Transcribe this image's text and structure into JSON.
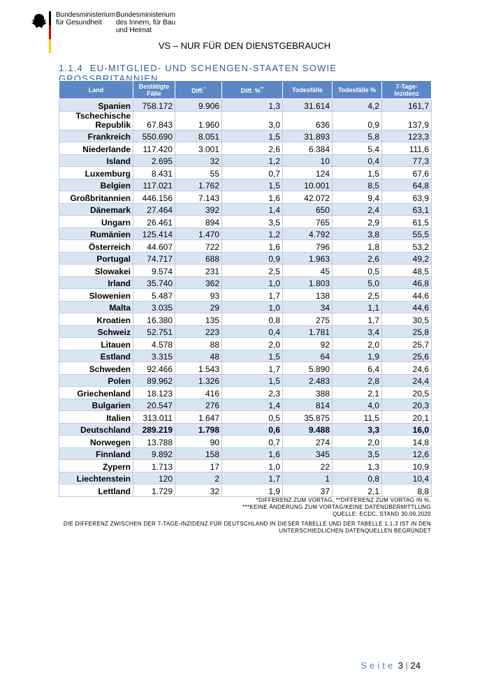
{
  "header": {
    "logo_left": [
      "Bundesministerium",
      "für Gesundheit"
    ],
    "logo_right": [
      "Bundesministerium",
      "des Innern, für Bau",
      "und Heimat"
    ],
    "classification": "VS – NUR FÜR DEN DIENSTGEBRAUCH"
  },
  "section": {
    "number": "1.1.4",
    "title": "EU-MITGLIED- UND SCHENGEN-STAATEN SOWIE GROSSBRITANNIEN"
  },
  "table": {
    "columns": [
      {
        "text": "Land"
      },
      {
        "text": "Bestätigte Fälle"
      },
      {
        "text": "Diff.",
        "sup": "*"
      },
      {
        "text": "Diff. %",
        "sup": "**"
      },
      {
        "text": "Todesfälle"
      },
      {
        "text": "Todesfälle %"
      },
      {
        "text": "7-Tage-Inzidenz"
      }
    ],
    "rows": [
      {
        "cells": [
          "Spanien",
          "758.172",
          "9.906",
          "1,3",
          "31.614",
          "4,2",
          "161,7"
        ]
      },
      {
        "cells": [
          "Tschechische Republik",
          "67.843",
          "1.960",
          "3,0",
          "636",
          "0,9",
          "137,9"
        ]
      },
      {
        "cells": [
          "Frankreich",
          "550.690",
          "8.051",
          "1,5",
          "31.893",
          "5,8",
          "123,3"
        ]
      },
      {
        "cells": [
          "Niederlande",
          "117.420",
          "3.001",
          "2,6",
          "6.384",
          "5,4",
          "111,6"
        ]
      },
      {
        "cells": [
          "Island",
          "2.695",
          "32",
          "1,2",
          "10",
          "0,4",
          "77,3"
        ]
      },
      {
        "cells": [
          "Luxemburg",
          "8.431",
          "55",
          "0,7",
          "124",
          "1,5",
          "67,6"
        ]
      },
      {
        "cells": [
          "Belgien",
          "117.021",
          "1.762",
          "1,5",
          "10.001",
          "8,5",
          "64,8"
        ]
      },
      {
        "cells": [
          "Großbritannien",
          "446.156",
          "7.143",
          "1,6",
          "42.072",
          "9,4",
          "63,9"
        ]
      },
      {
        "cells": [
          "Dänemark",
          "27.464",
          "392",
          "1,4",
          "650",
          "2,4",
          "63,1"
        ]
      },
      {
        "cells": [
          "Ungarn",
          "26.461",
          "894",
          "3,5",
          "765",
          "2,9",
          "61,5"
        ]
      },
      {
        "cells": [
          "Rumänien",
          "125.414",
          "1.470",
          "1,2",
          "4.792",
          "3,8",
          "55,5"
        ]
      },
      {
        "cells": [
          "Österreich",
          "44.607",
          "722",
          "1,6",
          "796",
          "1,8",
          "53,2"
        ]
      },
      {
        "cells": [
          "Portugal",
          "74.717",
          "688",
          "0,9",
          "1.963",
          "2,6",
          "49,2"
        ]
      },
      {
        "cells": [
          "Slowakei",
          "9.574",
          "231",
          "2,5",
          "45",
          "0,5",
          "48,5"
        ]
      },
      {
        "cells": [
          "Irland",
          "35.740",
          "362",
          "1,0",
          "1.803",
          "5,0",
          "46,8"
        ]
      },
      {
        "cells": [
          "Slowenien",
          "5.487",
          "93",
          "1,7",
          "138",
          "2,5",
          "44,6"
        ]
      },
      {
        "cells": [
          "Malta",
          "3.035",
          "29",
          "1,0",
          "34",
          "1,1",
          "44,6"
        ]
      },
      {
        "cells": [
          "Kroatien",
          "16.380",
          "135",
          "0,8",
          "275",
          "1,7",
          "30,5"
        ]
      },
      {
        "cells": [
          "Schweiz",
          "52.751",
          "223",
          "0,4",
          "1.781",
          "3,4",
          "25,8"
        ]
      },
      {
        "cells": [
          "Litauen",
          "4.578",
          "88",
          "2,0",
          "92",
          "2,0",
          "25,7"
        ]
      },
      {
        "cells": [
          "Estland",
          "3.315",
          "48",
          "1,5",
          "64",
          "1,9",
          "25,6"
        ]
      },
      {
        "cells": [
          "Schweden",
          "92.466",
          "1.543",
          "1,7",
          "5.890",
          "6,4",
          "24,6"
        ]
      },
      {
        "cells": [
          "Polen",
          "89.962",
          "1.326",
          "1,5",
          "2.483",
          "2,8",
          "24,4"
        ]
      },
      {
        "cells": [
          "Griechenland",
          "18.123",
          "416",
          "2,3",
          "388",
          "2,1",
          "20,5"
        ]
      },
      {
        "cells": [
          "Bulgarien",
          "20.547",
          "276",
          "1,4",
          "814",
          "4,0",
          "20,3"
        ]
      },
      {
        "cells": [
          "Italien",
          "313.011",
          "1.647",
          "0,5",
          "35.875",
          "11,5",
          "20,1"
        ]
      },
      {
        "cells": [
          "Deutschland",
          "289.219",
          "1.798",
          "0,6",
          "9.488",
          "3,3",
          "16,0"
        ],
        "bold": true
      },
      {
        "cells": [
          "Norwegen",
          "13.788",
          "90",
          "0,7",
          "274",
          "2,0",
          "14,8"
        ]
      },
      {
        "cells": [
          "Finnland",
          "9.892",
          "158",
          "1,6",
          "345",
          "3,5",
          "12,6"
        ]
      },
      {
        "cells": [
          "Zypern",
          "1.713",
          "17",
          "1,0",
          "22",
          "1,3",
          "10,9"
        ]
      },
      {
        "cells": [
          "Liechtenstein",
          "120",
          "2",
          "1,7",
          "1",
          "0,8",
          "10,4"
        ]
      },
      {
        "cells": [
          "Lettland",
          "1.729",
          "32",
          "1,9",
          "37",
          "2,1",
          "8,8"
        ]
      }
    ]
  },
  "footnotes": [
    "*DIFFERENZ ZUM VORTAG, **DIFFERENZ ZUM VORTAG IN %,",
    "***KEINE ÄNDERUNG ZUM VORTAG/KEINE DATENÜBERMITTLUNG",
    "QUELLE: ECDC, STAND 30.09.2020"
  ],
  "note": "DIE DIFFERENZ ZWISCHEN DER 7-TAGE-INZIDENZ FÜR DEUTSCHLAND IN DIESER TABELLE UND DER TABELLE 1.1.3 IST IN DEN UNTERSCHIEDLICHEN DATENQUELLEN BEGRÜNDET",
  "footer": {
    "label": "Seite",
    "page": "3",
    "total": "24"
  }
}
